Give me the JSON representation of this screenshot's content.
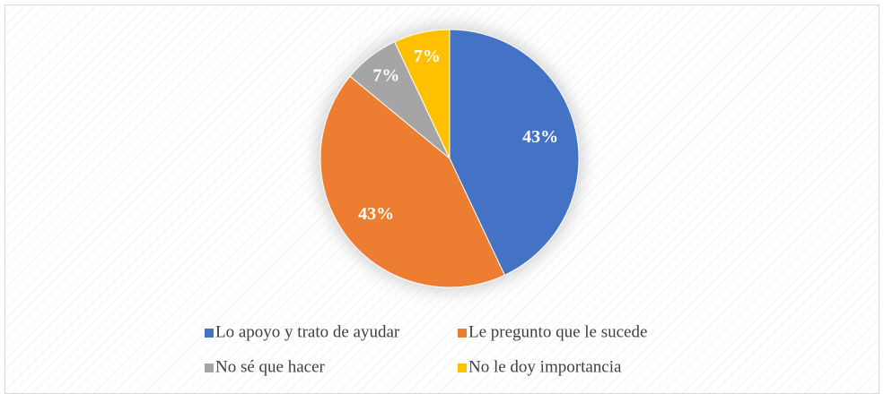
{
  "chart_data": {
    "type": "pie",
    "categories": [
      "Lo apoyo y trato de ayudar",
      "Le pregunto que le sucede",
      "No sé que hacer",
      "No le doy importancia"
    ],
    "values": [
      43,
      43,
      7,
      7
    ],
    "value_labels": [
      "43%",
      "43%",
      "7%",
      "7%"
    ],
    "colors": [
      "#4472c4",
      "#ed7d31",
      "#a5a5a5",
      "#ffc000"
    ],
    "legend": "bottom"
  }
}
